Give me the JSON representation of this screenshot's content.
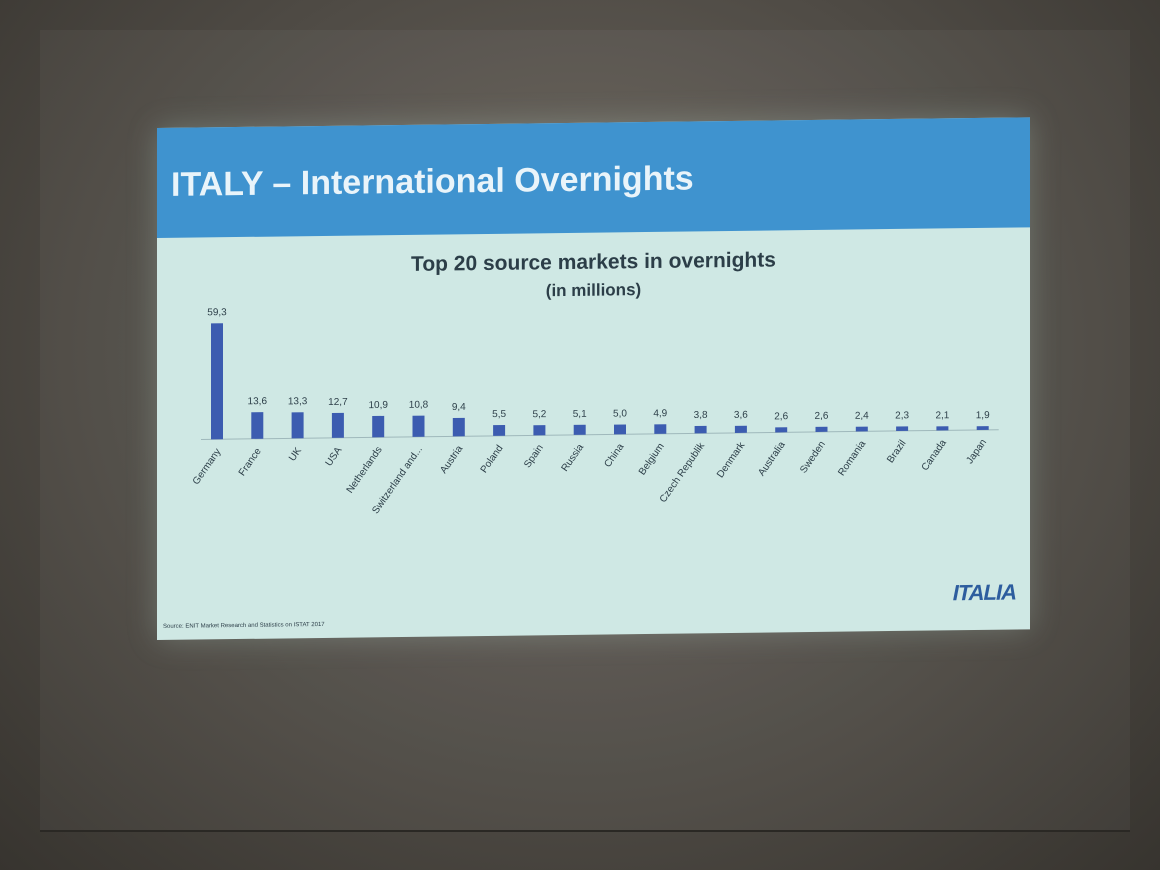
{
  "slide": {
    "title": "ITALY – International Overnights",
    "source": "Source: ENIT Market Research and Statistics on ISTAT 2017",
    "logo": "ITALIA"
  },
  "colors": {
    "banner": "#3f93cf",
    "bar": "#3c5cb0",
    "background": "#cfe8e4"
  },
  "chart_data": {
    "type": "bar",
    "title": "Top 20 source markets in overnights",
    "subtitle": "(in millions)",
    "xlabel": "",
    "ylabel": "",
    "ylim": [
      0,
      60
    ],
    "grid": false,
    "categories": [
      "Germany",
      "France",
      "UK",
      "USA",
      "Netherlands",
      "Switzerland and...",
      "Austria",
      "Poland",
      "Spain",
      "Russia",
      "China",
      "Belgium",
      "Czech Republik",
      "Denmark",
      "Australia",
      "Sweden",
      "Romania",
      "Brazil",
      "Canada",
      "Japan"
    ],
    "values": [
      59.3,
      13.6,
      13.3,
      12.7,
      10.9,
      10.8,
      9.4,
      5.5,
      5.2,
      5.1,
      5.0,
      4.9,
      3.8,
      3.6,
      2.6,
      2.6,
      2.4,
      2.3,
      2.1,
      1.9
    ],
    "value_labels": [
      "59,3",
      "13,6",
      "13,3",
      "12,7",
      "10,9",
      "10,8",
      "9,4",
      "5,5",
      "5,2",
      "5,1",
      "5,0",
      "4,9",
      "3,8",
      "3,6",
      "2,6",
      "2,6",
      "2,4",
      "2,3",
      "2,1",
      "1,9"
    ]
  }
}
